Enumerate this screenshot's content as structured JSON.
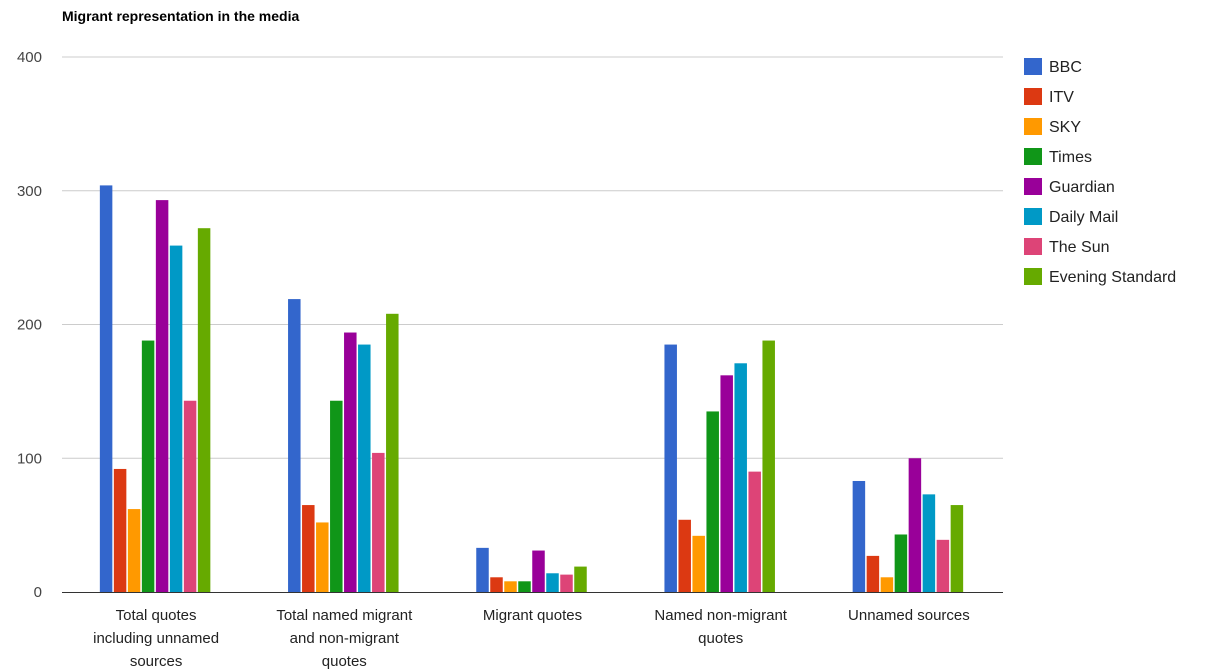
{
  "chart_data": {
    "type": "bar",
    "title": "Migrant representation in the media",
    "xlabel": "",
    "ylabel": "",
    "ylim": [
      0,
      400
    ],
    "yticks": [
      "0",
      "100",
      "200",
      "300",
      "400"
    ],
    "grid": true,
    "legend_position": "right",
    "categories": [
      [
        "Total quotes",
        "including unnamed",
        "sources"
      ],
      [
        "Total named migrant",
        "and non-migrant",
        "quotes"
      ],
      [
        "Migrant quotes"
      ],
      [
        "Named non-migrant",
        "quotes"
      ],
      [
        "Unnamed sources"
      ]
    ],
    "series": [
      {
        "name": "BBC",
        "color": "#3366cc",
        "values": [
          304,
          219,
          33,
          185,
          83
        ]
      },
      {
        "name": "ITV",
        "color": "#dc3912",
        "values": [
          92,
          65,
          11,
          54,
          27
        ]
      },
      {
        "name": "SKY",
        "color": "#ff9900",
        "values": [
          62,
          52,
          8,
          42,
          11
        ]
      },
      {
        "name": "Times",
        "color": "#109618",
        "values": [
          188,
          143,
          8,
          135,
          43
        ]
      },
      {
        "name": "Guardian",
        "color": "#990099",
        "values": [
          293,
          194,
          31,
          162,
          100
        ]
      },
      {
        "name": "Daily Mail",
        "color": "#0099c6",
        "values": [
          259,
          185,
          14,
          171,
          73
        ]
      },
      {
        "name": "The Sun",
        "color": "#dd4477",
        "values": [
          143,
          104,
          13,
          90,
          39
        ]
      },
      {
        "name": "Evening Standard",
        "color": "#66aa00",
        "values": [
          272,
          208,
          19,
          188,
          65
        ]
      }
    ]
  }
}
